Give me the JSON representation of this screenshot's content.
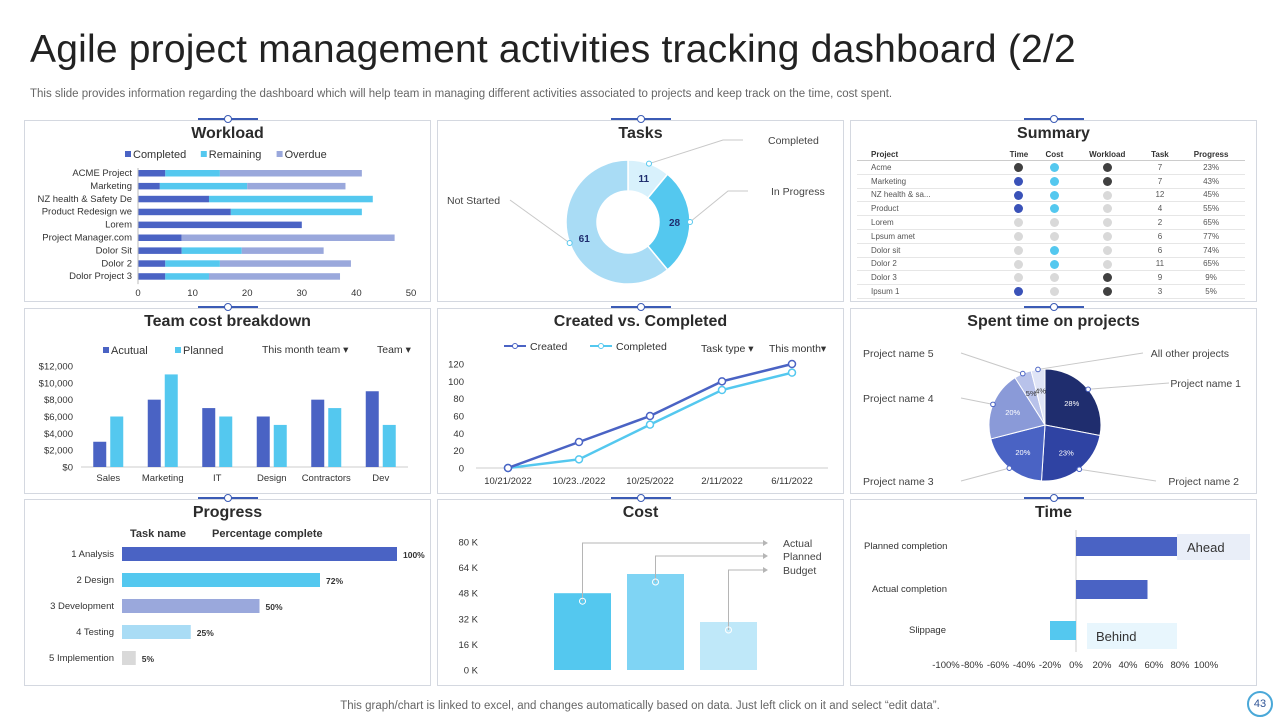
{
  "page": {
    "title": "Agile project management activities tracking dashboard (2/2",
    "subtitle": "This slide provides information regarding the dashboard which will help team in managing different activities associated to projects and keep track on the time, cost spent.",
    "footer": "This graph/chart is linked to excel,  and changes automatically based on data. Just left click on it and select “edit data”.",
    "page_number": "43"
  },
  "colors": {
    "dark_navy": "#1f2d6e",
    "blue": "#4a63c4",
    "light_blue": "#54c8ef",
    "lavender": "#9aa8dc",
    "pale_blue": "#a9dcf5",
    "grey": "#d9d9d9",
    "dark_grey": "#404040"
  },
  "panels": {
    "workload": "Workload",
    "tasks": "Tasks",
    "summary": "Summary",
    "team_cost": "Team cost breakdown",
    "created_completed": "Created vs. Completed",
    "spent_time": "Spent time on projects",
    "progress": "Progress",
    "cost": "Cost",
    "time": "Time"
  },
  "summary": {
    "headers": [
      "Project",
      "Time",
      "Cost",
      "Workload",
      "Task",
      "Progress"
    ],
    "rows": [
      {
        "project": "Acme",
        "time": "dark",
        "cost": "cyan",
        "workload": "dark",
        "task": "7",
        "progress": "23%"
      },
      {
        "project": "Marketing",
        "time": "blue",
        "cost": "cyan",
        "workload": "dark",
        "task": "7",
        "progress": "43%"
      },
      {
        "project": "NZ health & sa...",
        "time": "blue",
        "cost": "cyan",
        "workload": "grey",
        "task": "12",
        "progress": "45%"
      },
      {
        "project": "Product",
        "time": "blue",
        "cost": "cyan",
        "workload": "grey",
        "task": "4",
        "progress": "55%"
      },
      {
        "project": "Lorem",
        "time": "grey",
        "cost": "grey",
        "workload": "grey",
        "task": "2",
        "progress": "65%"
      },
      {
        "project": "Lpsum amet",
        "time": "grey",
        "cost": "grey",
        "workload": "grey",
        "task": "6",
        "progress": "77%"
      },
      {
        "project": "Dolor sit",
        "time": "grey",
        "cost": "cyan",
        "workload": "grey",
        "task": "6",
        "progress": "74%"
      },
      {
        "project": "Dolor 2",
        "time": "grey",
        "cost": "cyan",
        "workload": "grey",
        "task": "11",
        "progress": "65%"
      },
      {
        "project": "Dolor 3",
        "time": "grey",
        "cost": "grey",
        "workload": "dark",
        "task": "9",
        "progress": "9%"
      },
      {
        "project": "Ipsum 1",
        "time": "blue",
        "cost": "grey",
        "workload": "dark",
        "task": "3",
        "progress": "5%"
      }
    ]
  },
  "chart_data": [
    {
      "id": "workload",
      "type": "bar",
      "orientation": "horizontal",
      "stacked": true,
      "title": "Workload",
      "categories": [
        "ACME Project",
        "Marketing",
        "NZ health & Safety De",
        "Product Redesign we",
        "Lorem",
        "Project Manager.com",
        "Dolor Sit",
        "Dolor 2",
        "Dolor Project 3"
      ],
      "series": [
        {
          "name": "Completed",
          "color": "#4a63c4",
          "values": [
            5,
            4,
            13,
            17,
            30,
            8,
            8,
            5,
            5
          ]
        },
        {
          "name": "Remaining",
          "color": "#54c8ef",
          "values": [
            10,
            16,
            30,
            24,
            0,
            0,
            11,
            10,
            8
          ]
        },
        {
          "name": "Overdue",
          "color": "#9aa8dc",
          "values": [
            26,
            18,
            0,
            0,
            0,
            39,
            15,
            24,
            24
          ]
        }
      ],
      "xlim": [
        0,
        50
      ],
      "xticks": [
        "0",
        "10",
        "20",
        "30",
        "40",
        "50"
      ]
    },
    {
      "id": "tasks",
      "type": "pie",
      "donut": true,
      "title": "Tasks",
      "slices": [
        {
          "label": "Completed",
          "value": 11,
          "color": "#d8f1fc"
        },
        {
          "label": "In Progress",
          "value": 28,
          "color": "#54c8ef"
        },
        {
          "label": "Not Started",
          "value": 61,
          "color": "#a9dcf5"
        }
      ]
    },
    {
      "id": "team_cost",
      "type": "bar",
      "title": "Team cost breakdown",
      "categories": [
        "Sales",
        "Marketing",
        "IT",
        "Design",
        "Contractors",
        "Dev"
      ],
      "series": [
        {
          "name": "Acutual",
          "color": "#4a63c4",
          "values": [
            3000,
            8000,
            7000,
            6000,
            8000,
            9000
          ]
        },
        {
          "name": "Planned",
          "color": "#54c8ef",
          "values": [
            6000,
            11000,
            6000,
            5000,
            7000,
            5000
          ]
        }
      ],
      "ylim": [
        0,
        12000
      ],
      "yticks": [
        "$0",
        "$2,000",
        "$4,000",
        "$6,000",
        "$8,000",
        "$10,000",
        "$12,000"
      ],
      "filters": [
        "This month team ▾",
        "Team ▾"
      ]
    },
    {
      "id": "created_completed",
      "type": "line",
      "title": "Created vs. Completed",
      "x": [
        "10/21/2022",
        "10/23../2022",
        "10/25/2022",
        "2/11/2022",
        "6/11/2022"
      ],
      "series": [
        {
          "name": "Created",
          "color": "#4a63c4",
          "values": [
            0,
            30,
            60,
            100,
            120
          ]
        },
        {
          "name": "Completed",
          "color": "#54c8ef",
          "values": [
            0,
            10,
            50,
            90,
            110
          ]
        }
      ],
      "ylim": [
        0,
        120
      ],
      "yticks": [
        "0",
        "20",
        "40",
        "60",
        "80",
        "100",
        "120"
      ],
      "filters": [
        "Task type ▾",
        "This month▾"
      ]
    },
    {
      "id": "spent_time",
      "type": "pie",
      "title": "Spent time on projects",
      "slices": [
        {
          "label": "Project name 1",
          "value": 28,
          "display": "28%",
          "color": "#1f2d6e"
        },
        {
          "label": "Project name 2",
          "value": 23,
          "display": "23%",
          "color": "#2f43a3"
        },
        {
          "label": "Project name 3",
          "value": 20,
          "display": "20%",
          "color": "#4a63c4"
        },
        {
          "label": "Project name 4",
          "value": 20,
          "display": "20%",
          "color": "#8a9ad8"
        },
        {
          "label": "Project name 5",
          "value": 5,
          "display": "5%",
          "color": "#b8c2ea"
        },
        {
          "label": "All other projects",
          "value": 4,
          "display": "4%",
          "color": "#dfe4f6"
        }
      ]
    },
    {
      "id": "progress",
      "type": "bar",
      "orientation": "horizontal",
      "title": "Progress",
      "headers": [
        "Task name",
        "Percentage complete"
      ],
      "categories": [
        "1 Analysis",
        "2 Design",
        "3 Development",
        "4 Testing",
        "5 Implemention"
      ],
      "values": [
        100,
        72,
        50,
        25,
        5
      ],
      "labels": [
        "100%",
        "72%",
        "50%",
        "25%",
        "5%"
      ],
      "colors": [
        "#4a63c4",
        "#54c8ef",
        "#9aa8dc",
        "#a9dcf5",
        "#d9d9d9"
      ],
      "xlim": [
        0,
        100
      ]
    },
    {
      "id": "cost",
      "type": "bar",
      "title": "Cost",
      "categories": [
        "Actual",
        "Planned",
        "Budget"
      ],
      "values": [
        48000,
        60000,
        30000
      ],
      "colors": [
        "#54c8ef",
        "#7fd4f4",
        "#bfe8f9"
      ],
      "ylim": [
        0,
        80000
      ],
      "yticks": [
        "0 K",
        "16 K",
        "32 K",
        "48 K",
        "64 K",
        "80 K"
      ]
    },
    {
      "id": "time",
      "type": "bar",
      "orientation": "horizontal",
      "title": "Time",
      "categories": [
        "Planned completion",
        "Actual completion",
        "Slippage"
      ],
      "values": [
        80,
        55,
        -20
      ],
      "colors": [
        "#4a63c4",
        "#4a63c4",
        "#54c8ef"
      ],
      "xlim": [
        -100,
        100
      ],
      "xticks": [
        "-100%",
        "-80%",
        "-60%",
        "-40%",
        "-20%",
        "0%",
        "20%",
        "40%",
        "60%",
        "80%",
        "100%"
      ],
      "annotations": [
        "Ahead",
        "Behind"
      ]
    }
  ]
}
